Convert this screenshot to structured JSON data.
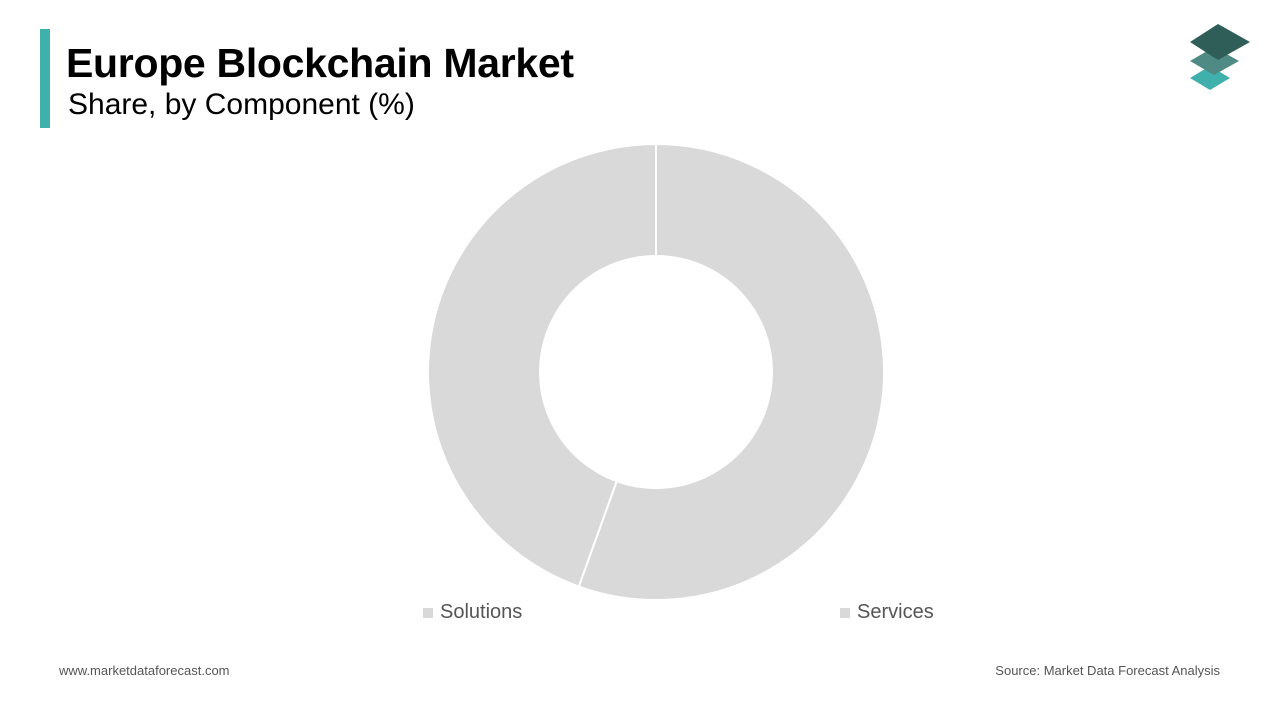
{
  "header": {
    "title": "Europe Blockchain Market",
    "subtitle": "Share, by Component (%)"
  },
  "colors": {
    "accent": "#3fb0ac",
    "slice_fill": "#d9d9d9",
    "logo_dark": "#2f5d57",
    "logo_mid": "#4f8a84",
    "logo_light": "#3fb0ac"
  },
  "logo": {
    "icon": "stacked-layers-icon"
  },
  "chart_data": {
    "type": "pie",
    "donut": true,
    "categories": [
      "Services",
      "Solutions"
    ],
    "values": [
      55.5,
      44.5
    ],
    "start_angle_deg": 0,
    "direction": "clockwise",
    "legend_position": "bottom",
    "legend": [
      "Solutions",
      "Services"
    ]
  },
  "footer": {
    "website": "www.marketdataforecast.com",
    "source": "Source: Market Data Forecast Analysis"
  }
}
